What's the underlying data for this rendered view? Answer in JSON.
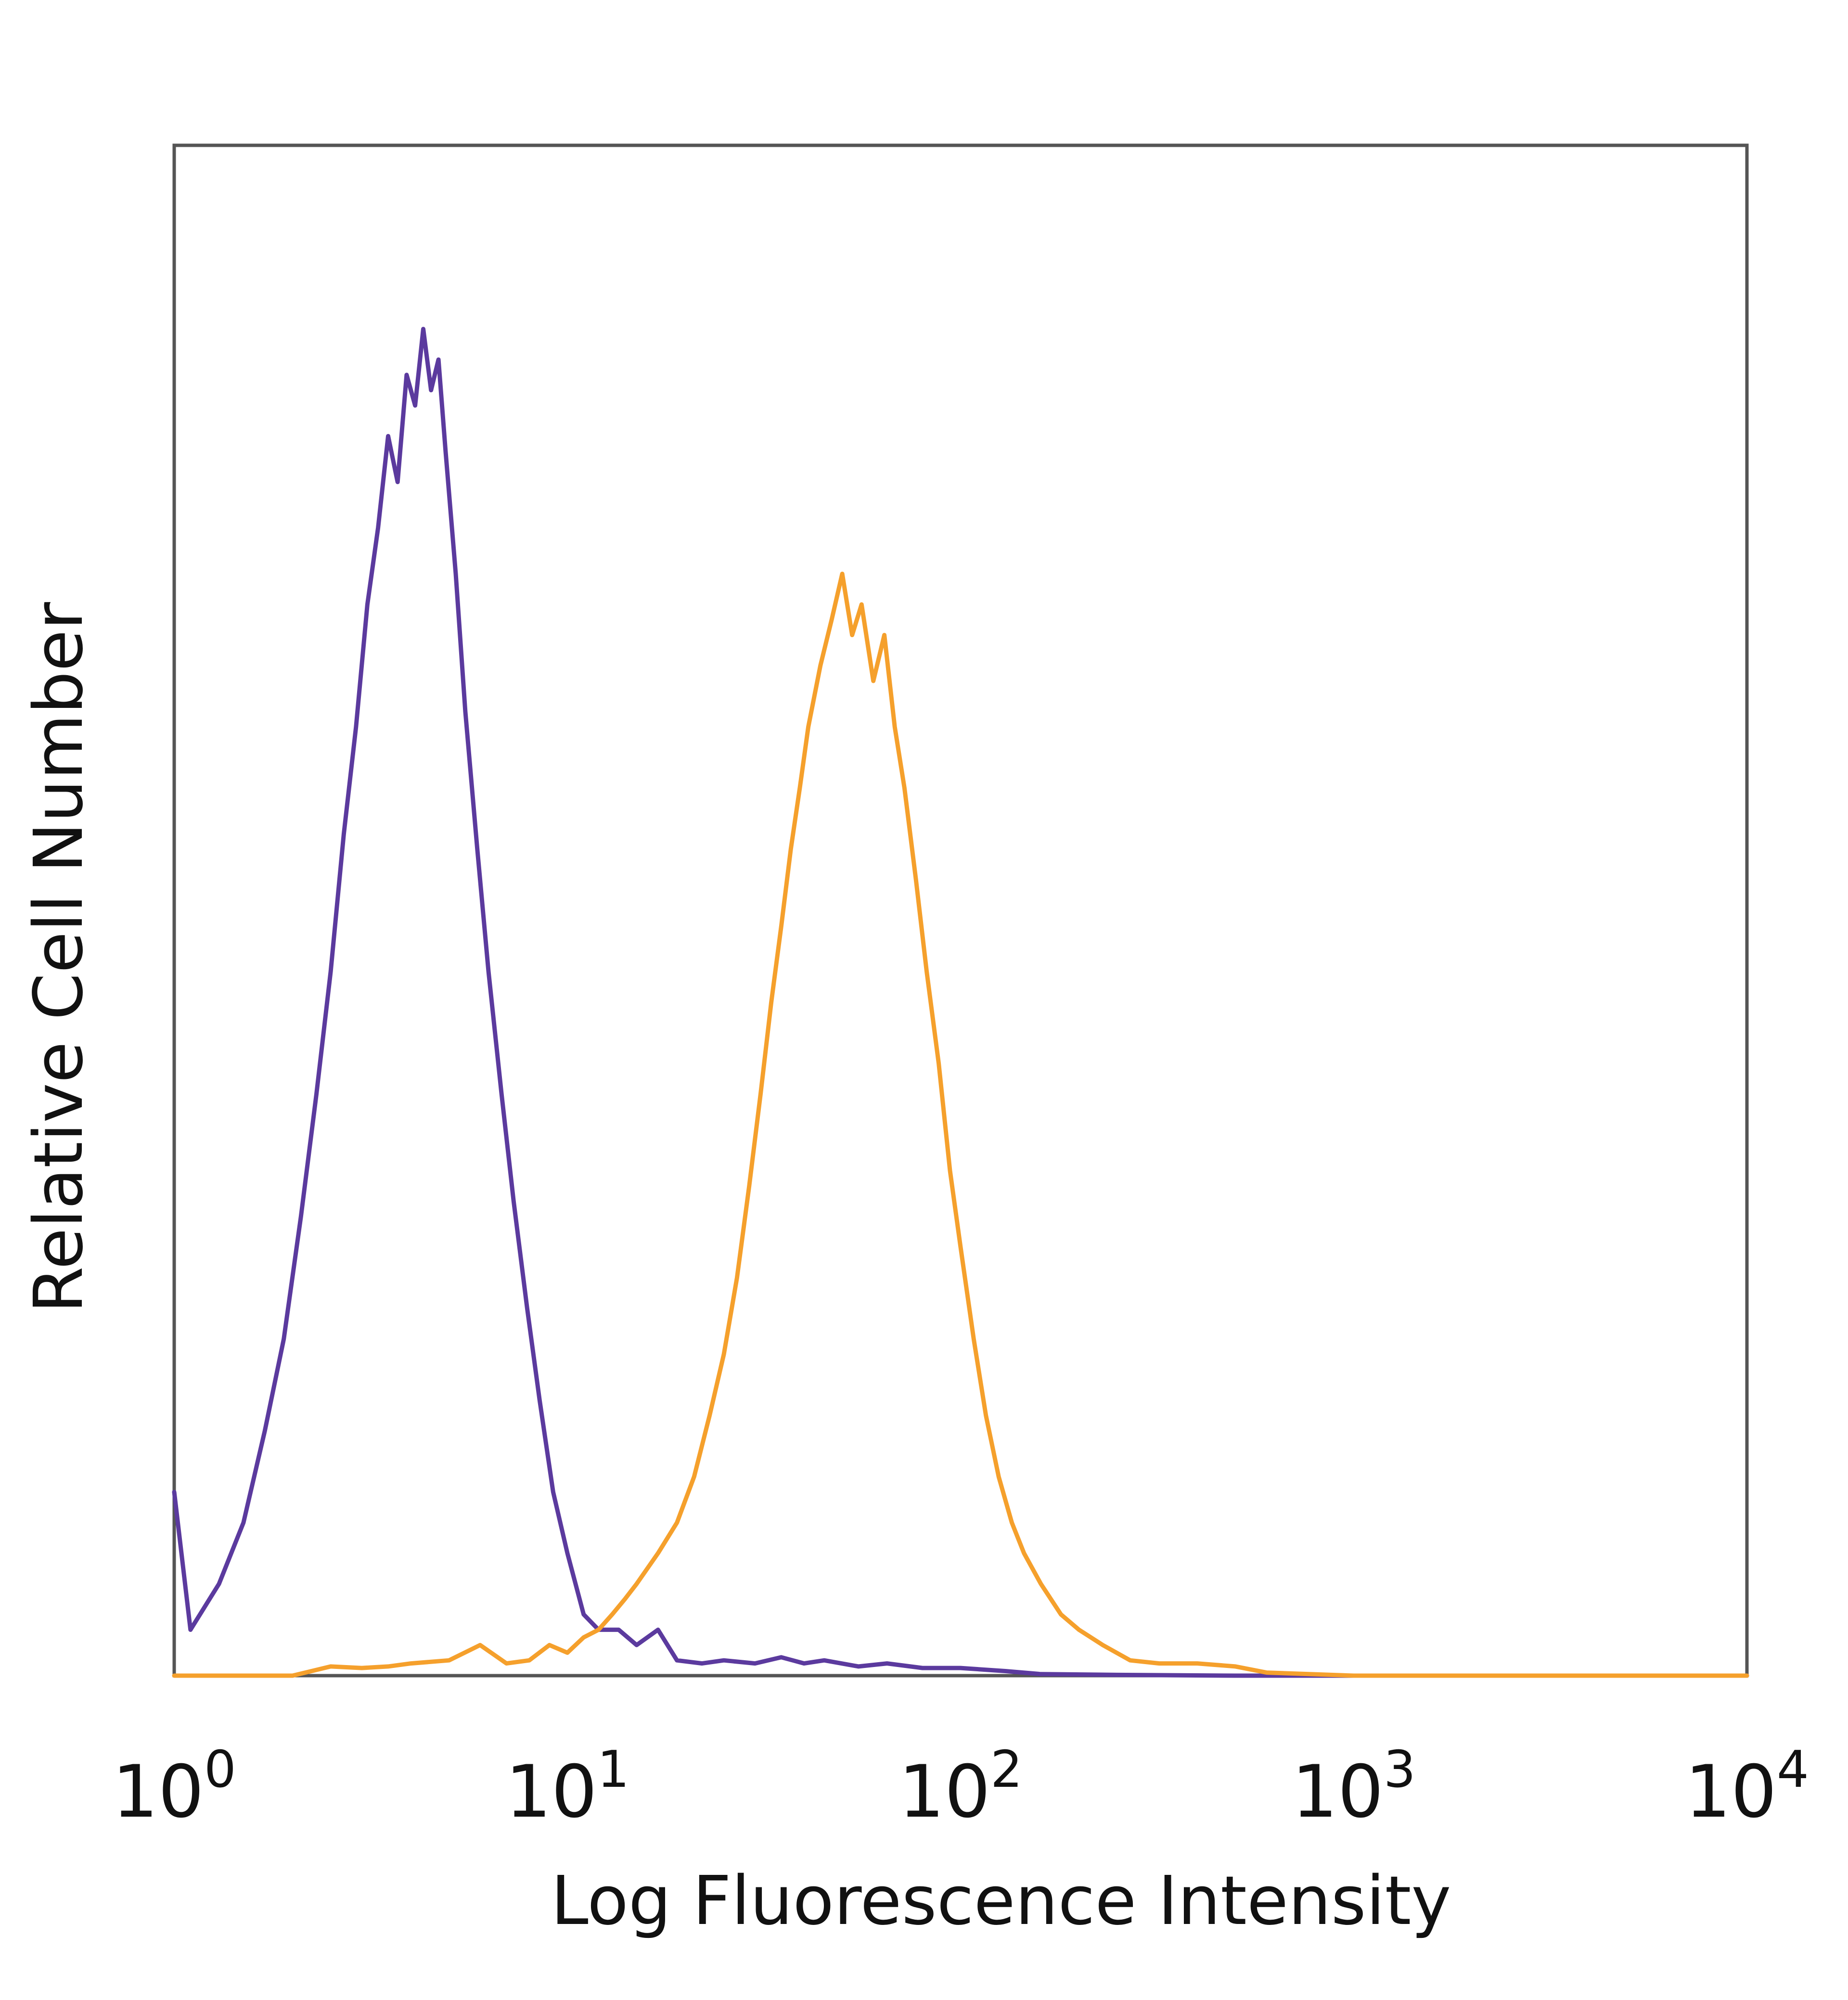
{
  "chart_data": {
    "type": "line",
    "xlabel": "Log Fluorescence Intensity",
    "ylabel": "Relative Cell Number",
    "x_scale": "log",
    "xlim": [
      1,
      10000
    ],
    "ylim": [
      0,
      100
    ],
    "grid": false,
    "x_ticks": [
      {
        "base": "10",
        "exp": "0",
        "value": 1
      },
      {
        "base": "10",
        "exp": "1",
        "value": 10
      },
      {
        "base": "10",
        "exp": "2",
        "value": 100
      },
      {
        "base": "10",
        "exp": "3",
        "value": 1000
      },
      {
        "base": "10",
        "exp": "4",
        "value": 10000
      }
    ],
    "series": [
      {
        "color": "#5b3a9e",
        "points": [
          [
            1.0,
            12
          ],
          [
            1.1,
            3
          ],
          [
            1.3,
            6
          ],
          [
            1.5,
            10
          ],
          [
            1.7,
            16
          ],
          [
            1.9,
            22
          ],
          [
            2.1,
            30
          ],
          [
            2.3,
            38
          ],
          [
            2.5,
            46
          ],
          [
            2.7,
            55
          ],
          [
            2.9,
            62
          ],
          [
            3.1,
            70
          ],
          [
            3.3,
            75
          ],
          [
            3.5,
            81
          ],
          [
            3.7,
            78
          ],
          [
            3.9,
            85
          ],
          [
            4.1,
            83
          ],
          [
            4.3,
            88
          ],
          [
            4.5,
            84
          ],
          [
            4.7,
            86
          ],
          [
            4.9,
            80
          ],
          [
            5.2,
            72
          ],
          [
            5.5,
            63
          ],
          [
            5.9,
            54
          ],
          [
            6.3,
            46
          ],
          [
            6.8,
            38
          ],
          [
            7.3,
            31
          ],
          [
            7.9,
            24
          ],
          [
            8.5,
            18
          ],
          [
            9.2,
            12
          ],
          [
            10.0,
            8
          ],
          [
            11.0,
            4
          ],
          [
            12.0,
            3
          ],
          [
            13.5,
            3
          ],
          [
            15.0,
            2
          ],
          [
            17.0,
            3
          ],
          [
            19.0,
            1
          ],
          [
            22.0,
            0.8
          ],
          [
            25.0,
            1
          ],
          [
            30.0,
            0.8
          ],
          [
            35.0,
            1.2
          ],
          [
            40.0,
            0.8
          ],
          [
            45.0,
            1
          ],
          [
            55.0,
            0.6
          ],
          [
            65.0,
            0.8
          ],
          [
            80.0,
            0.5
          ],
          [
            100.0,
            0.5
          ],
          [
            130.0,
            0.3
          ],
          [
            160.0,
            0.1
          ],
          [
            250.0,
            0.05
          ],
          [
            500.0,
            0
          ],
          [
            1000.0,
            0
          ],
          [
            10000.0,
            0
          ]
        ]
      },
      {
        "color": "#f5a02c",
        "points": [
          [
            1.0,
            0
          ],
          [
            2.0,
            0
          ],
          [
            2.5,
            0.6
          ],
          [
            3.0,
            0.5
          ],
          [
            3.5,
            0.6
          ],
          [
            4.0,
            0.8
          ],
          [
            5.0,
            1.0
          ],
          [
            6.0,
            2.0
          ],
          [
            7.0,
            0.8
          ],
          [
            8.0,
            1.0
          ],
          [
            9.0,
            2.0
          ],
          [
            10.0,
            1.5
          ],
          [
            11.0,
            2.5
          ],
          [
            12.0,
            3.0
          ],
          [
            13.0,
            4.0
          ],
          [
            14.0,
            5.0
          ],
          [
            15.0,
            6.0
          ],
          [
            17.0,
            8.0
          ],
          [
            19.0,
            10.0
          ],
          [
            21.0,
            13.0
          ],
          [
            23.0,
            17.0
          ],
          [
            25.0,
            21.0
          ],
          [
            27.0,
            26.0
          ],
          [
            29.0,
            32.0
          ],
          [
            31.0,
            38.0
          ],
          [
            33.0,
            44.0
          ],
          [
            35.0,
            49.0
          ],
          [
            37.0,
            54.0
          ],
          [
            39.0,
            58.0
          ],
          [
            41.0,
            62.0
          ],
          [
            44.0,
            66.0
          ],
          [
            47.0,
            69.0
          ],
          [
            50.0,
            72.0
          ],
          [
            53.0,
            68.0
          ],
          [
            56.0,
            70.0
          ],
          [
            60.0,
            65.0
          ],
          [
            64.0,
            68.0
          ],
          [
            68.0,
            62.0
          ],
          [
            72.0,
            58.0
          ],
          [
            77.0,
            52.0
          ],
          [
            82.0,
            46.0
          ],
          [
            88.0,
            40.0
          ],
          [
            94.0,
            33.0
          ],
          [
            100.0,
            28.0
          ],
          [
            108.0,
            22.0
          ],
          [
            116.0,
            17.0
          ],
          [
            125.0,
            13.0
          ],
          [
            135.0,
            10.0
          ],
          [
            145.0,
            8.0
          ],
          [
            160.0,
            6.0
          ],
          [
            180.0,
            4.0
          ],
          [
            200.0,
            3.0
          ],
          [
            230.0,
            2.0
          ],
          [
            270.0,
            1.0
          ],
          [
            320.0,
            0.8
          ],
          [
            400.0,
            0.8
          ],
          [
            500.0,
            0.6
          ],
          [
            600.0,
            0.2
          ],
          [
            1000.0,
            0
          ],
          [
            10000.0,
            0
          ]
        ]
      }
    ]
  }
}
